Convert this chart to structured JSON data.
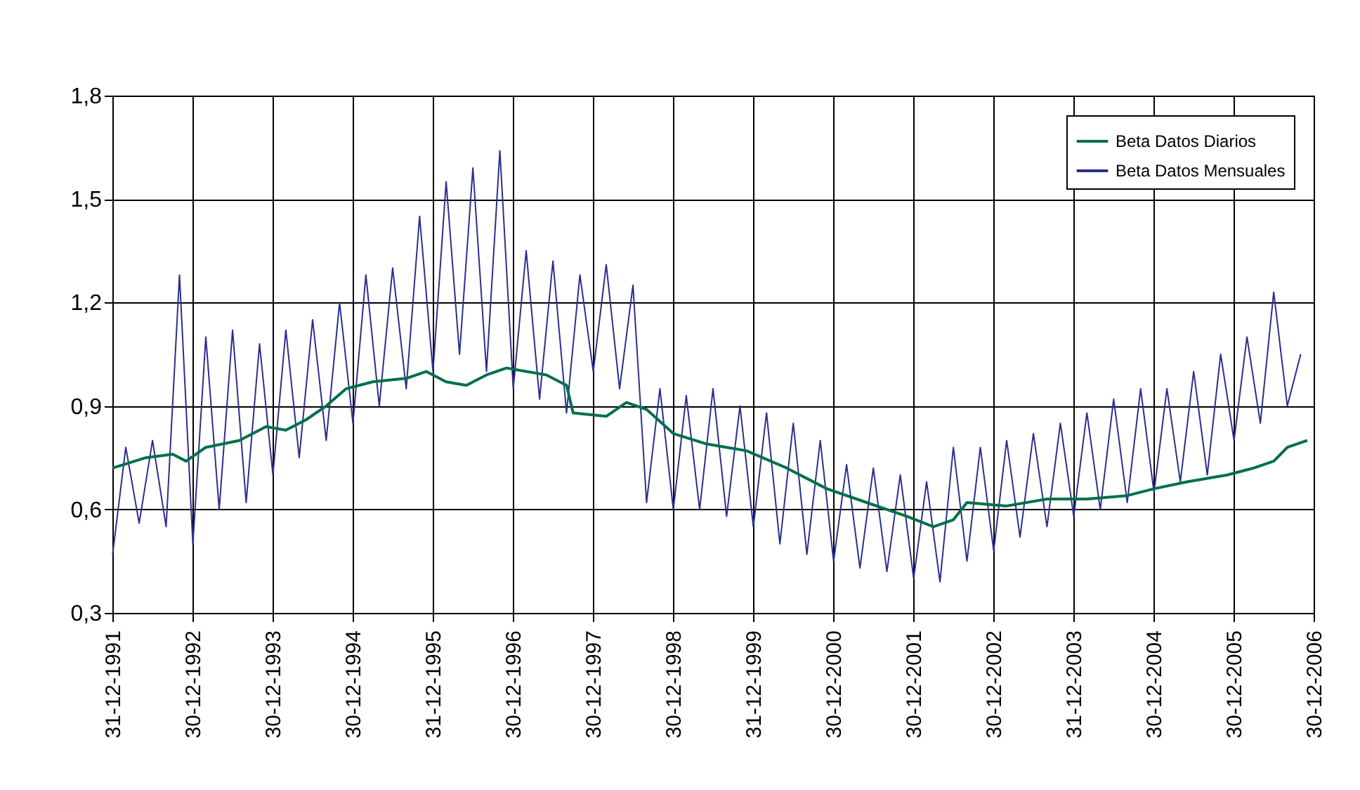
{
  "chart_data": {
    "type": "line",
    "xlim": [
      "1991-12-31",
      "2006-12-30"
    ],
    "xticks": [
      {
        "value": "1991-12-31",
        "label": "31-12-1991"
      },
      {
        "value": "1992-12-30",
        "label": "30-12-1992"
      },
      {
        "value": "1993-12-30",
        "label": "30-12-1993"
      },
      {
        "value": "1994-12-30",
        "label": "30-12-1994"
      },
      {
        "value": "1995-12-31",
        "label": "31-12-1995"
      },
      {
        "value": "1996-12-30",
        "label": "30-12-1996"
      },
      {
        "value": "1997-12-30",
        "label": "30-12-1997"
      },
      {
        "value": "1998-12-30",
        "label": "30-12-1998"
      },
      {
        "value": "1999-12-31",
        "label": "31-12-1999"
      },
      {
        "value": "2000-12-30",
        "label": "30-12-2000"
      },
      {
        "value": "2001-12-30",
        "label": "30-12-2001"
      },
      {
        "value": "2002-12-30",
        "label": "30-12-2002"
      },
      {
        "value": "2003-12-31",
        "label": "31-12-2003"
      },
      {
        "value": "2004-12-30",
        "label": "30-12-2004"
      },
      {
        "value": "2005-12-30",
        "label": "30-12-2005"
      },
      {
        "value": "2006-12-30",
        "label": "30-12-2006"
      }
    ],
    "ylim": [
      0.3,
      1.8
    ],
    "yticks": [
      {
        "value": 0.3,
        "label": "0,3"
      },
      {
        "value": 0.6,
        "label": "0,6"
      },
      {
        "value": 0.9,
        "label": "0,9"
      },
      {
        "value": 1.2,
        "label": "1,2"
      },
      {
        "value": 1.5,
        "label": "1,5"
      },
      {
        "value": 1.8,
        "label": "1,8"
      }
    ],
    "grid": true,
    "legend": "top right",
    "series": [
      {
        "name": "Beta Datos Diarios",
        "color": "#00704a",
        "x": [
          "1992-01",
          "1992-06",
          "1992-10",
          "1992-12",
          "1993-03",
          "1993-08",
          "1993-12",
          "1994-03",
          "1994-06",
          "1994-09",
          "1994-12",
          "1995-04",
          "1995-09",
          "1995-12",
          "1996-03",
          "1996-06",
          "1996-09",
          "1996-12",
          "1997-03",
          "1997-06",
          "1997-09",
          "1997-10",
          "1998-03",
          "1998-06",
          "1998-09",
          "1999-01",
          "1999-06",
          "1999-12",
          "2000-06",
          "2000-12",
          "2001-06",
          "2001-12",
          "2002-04",
          "2002-07",
          "2002-09",
          "2003-03",
          "2003-09",
          "2004-03",
          "2004-09",
          "2005-01",
          "2005-06",
          "2005-12",
          "2006-04",
          "2006-07",
          "2006-09",
          "2006-12"
        ],
        "values": [
          0.72,
          0.75,
          0.76,
          0.74,
          0.78,
          0.8,
          0.84,
          0.83,
          0.86,
          0.9,
          0.95,
          0.97,
          0.98,
          1.0,
          0.97,
          0.96,
          0.99,
          1.01,
          1.0,
          0.99,
          0.96,
          0.88,
          0.87,
          0.91,
          0.89,
          0.82,
          0.79,
          0.77,
          0.72,
          0.66,
          0.62,
          0.58,
          0.55,
          0.57,
          0.62,
          0.61,
          0.63,
          0.63,
          0.64,
          0.66,
          0.68,
          0.7,
          0.72,
          0.74,
          0.78,
          0.8
        ]
      },
      {
        "name": "Beta Datos Mensuales",
        "color": "#2b2f8f",
        "x": [
          "1992-01",
          "1992-03",
          "1992-05",
          "1992-07",
          "1992-09",
          "1992-11",
          "1993-01",
          "1993-03",
          "1993-05",
          "1993-07",
          "1993-09",
          "1993-11",
          "1994-01",
          "1994-03",
          "1994-05",
          "1994-07",
          "1994-09",
          "1994-11",
          "1995-01",
          "1995-03",
          "1995-05",
          "1995-07",
          "1995-09",
          "1995-11",
          "1996-01",
          "1996-03",
          "1996-05",
          "1996-07",
          "1996-09",
          "1996-11",
          "1997-01",
          "1997-03",
          "1997-05",
          "1997-07",
          "1997-09",
          "1997-11",
          "1998-01",
          "1998-03",
          "1998-05",
          "1998-07",
          "1998-09",
          "1998-11",
          "1999-01",
          "1999-03",
          "1999-05",
          "1999-07",
          "1999-09",
          "1999-11",
          "2000-01",
          "2000-03",
          "2000-05",
          "2000-07",
          "2000-09",
          "2000-11",
          "2001-01",
          "2001-03",
          "2001-05",
          "2001-07",
          "2001-09",
          "2001-11",
          "2002-01",
          "2002-03",
          "2002-05",
          "2002-07",
          "2002-09",
          "2002-11",
          "2003-01",
          "2003-03",
          "2003-05",
          "2003-07",
          "2003-09",
          "2003-11",
          "2004-01",
          "2004-03",
          "2004-05",
          "2004-07",
          "2004-09",
          "2004-11",
          "2005-01",
          "2005-03",
          "2005-05",
          "2005-07",
          "2005-09",
          "2005-11",
          "2006-01",
          "2006-03",
          "2006-05",
          "2006-07",
          "2006-09",
          "2006-11"
        ],
        "values": [
          0.47,
          0.78,
          0.56,
          0.8,
          0.55,
          1.28,
          0.5,
          1.1,
          0.6,
          1.12,
          0.62,
          1.08,
          0.7,
          1.12,
          0.75,
          1.15,
          0.8,
          1.2,
          0.85,
          1.28,
          0.9,
          1.3,
          0.95,
          1.45,
          1.0,
          1.55,
          1.05,
          1.59,
          1.0,
          1.64,
          0.95,
          1.35,
          0.92,
          1.32,
          0.88,
          1.28,
          1.0,
          1.31,
          0.95,
          1.25,
          0.62,
          0.95,
          0.6,
          0.93,
          0.6,
          0.95,
          0.58,
          0.9,
          0.55,
          0.88,
          0.5,
          0.85,
          0.47,
          0.8,
          0.45,
          0.73,
          0.43,
          0.72,
          0.42,
          0.7,
          0.4,
          0.68,
          0.39,
          0.78,
          0.45,
          0.78,
          0.48,
          0.8,
          0.52,
          0.82,
          0.55,
          0.85,
          0.58,
          0.88,
          0.6,
          0.92,
          0.62,
          0.95,
          0.65,
          0.95,
          0.68,
          1.0,
          0.7,
          1.05,
          0.8,
          1.1,
          0.85,
          1.23,
          0.9,
          1.05
        ]
      }
    ]
  }
}
